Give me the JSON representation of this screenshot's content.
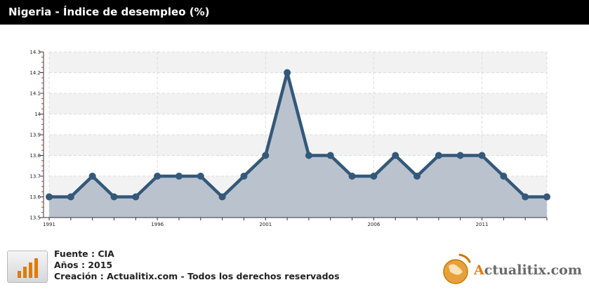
{
  "header": {
    "title": "Nigeria - Índice de desempleo (%)"
  },
  "chart_data": {
    "type": "area",
    "title": "Nigeria - Índice de desempleo (%)",
    "xlabel": "",
    "ylabel": "",
    "x": [
      1991,
      1992,
      1993,
      1994,
      1995,
      1996,
      1997,
      1998,
      1999,
      2000,
      2001,
      2002,
      2003,
      2004,
      2005,
      2006,
      2007,
      2008,
      2009,
      2010,
      2011,
      2012,
      2013,
      2014
    ],
    "values": [
      13.6,
      13.6,
      13.7,
      13.6,
      13.6,
      13.7,
      13.7,
      13.7,
      13.6,
      13.7,
      13.8,
      14.2,
      13.8,
      13.8,
      13.7,
      13.7,
      13.8,
      13.7,
      13.8,
      13.8,
      13.8,
      13.7,
      13.6,
      13.6
    ],
    "ylim": [
      13.5,
      14.3
    ],
    "yticks": [
      "13.5",
      "13.6",
      "13.7",
      "13.8",
      "13.9",
      "14",
      "14.1",
      "14.2",
      "14.3"
    ],
    "xtick_labels": [
      "1991",
      "1996",
      "2001",
      "2006",
      "2011"
    ],
    "grid": true,
    "colors": {
      "line": "#33587a",
      "fill": "#b6bfca",
      "band": "#f2f2f2"
    }
  },
  "footer": {
    "source": "Fuente : CIA",
    "years": "Años : 2015",
    "credit": "Creación : Actualitix.com - Todos los derechos reservados"
  },
  "brand": {
    "name_prefix": "A",
    "name_rest": "ctualitix.com"
  }
}
